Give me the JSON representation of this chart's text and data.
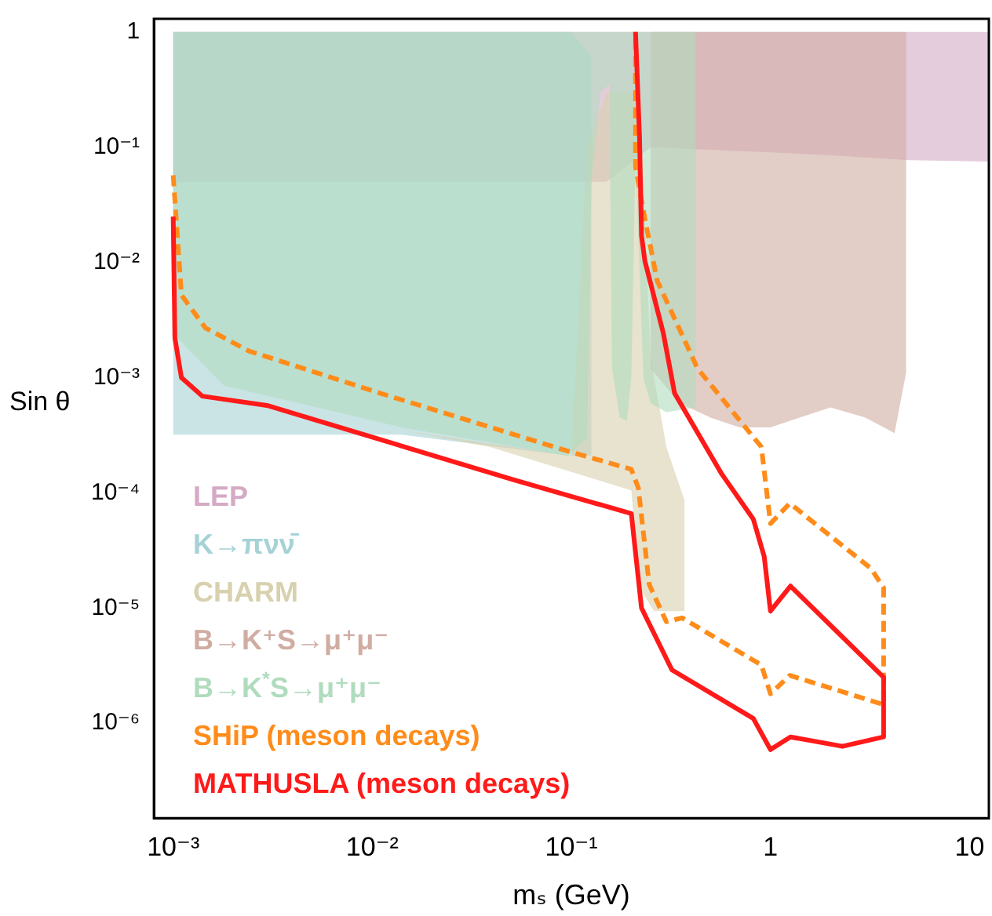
{
  "chart_data": {
    "type": "area",
    "xlabel": "mₛ (GeV)",
    "ylabel": "Sin θ",
    "log": "xy",
    "legend": "bottom left",
    "xlim": [
      0.0008,
      12.5
    ],
    "ylim": [
      1.5e-07,
      1.3
    ],
    "xticks": [
      {
        "value": 0.001,
        "label": "10⁻³"
      },
      {
        "value": 0.01,
        "label": "10⁻²"
      },
      {
        "value": 0.1,
        "label": "10⁻¹"
      },
      1,
      10
    ],
    "yticks": [
      {
        "value": 1e-06,
        "label": "10⁻⁶"
      },
      {
        "value": 1e-05,
        "label": "10⁻⁵"
      },
      {
        "value": 0.0001,
        "label": "10⁻⁴"
      },
      {
        "value": 0.001,
        "label": "10⁻³"
      },
      {
        "value": 0.01,
        "label": "10⁻²"
      },
      {
        "value": 0.1,
        "label": "10⁻¹"
      },
      1
    ],
    "series": [
      {
        "name": "LEP",
        "color": "#d4aac4",
        "x": [
          0.001,
          0.15,
          0.25,
          1,
          2,
          5,
          12.5,
          12.5,
          0.001
        ],
        "values": [
          0.05,
          0.05,
          0.1,
          0.09,
          0.085,
          0.077,
          0.075,
          1,
          1
        ]
      },
      {
        "name": "K→πνν̄",
        "color": "#a6d2d6",
        "x": [
          0.001,
          0.1,
          0.126,
          0.126,
          0.096,
          0.014,
          0.001
        ],
        "values": [
          1,
          1,
          0.6,
          0.00021,
          0.00021,
          0.00032,
          0.00032
        ]
      },
      {
        "name": "CHARM",
        "color": "#d7d1ae",
        "x": [
          0.014,
          0.039,
          0.2,
          0.22,
          0.26,
          0.37,
          0.37,
          0.3,
          0.25,
          0.23,
          0.2,
          0.15,
          0.12,
          0.1
        ],
        "values": [
          0.00035,
          0.00025,
          0.000105,
          1.5e-05,
          9.4e-06,
          9.4e-06,
          8.6e-05,
          0.00025,
          0.0015,
          0.05,
          0.3,
          0.3,
          0.1,
          0.00021
        ]
      },
      {
        "name": "B→K⁺S→μ⁺μ⁻",
        "color": "#d0aca2",
        "x": [
          0.25,
          4.8,
          4.8,
          4.2,
          3,
          2,
          1,
          0.7,
          0.5,
          0.35,
          0.25
        ],
        "values": [
          1,
          1,
          0.0011,
          0.00033,
          0.00045,
          0.00055,
          0.00037,
          0.00037,
          0.00045,
          0.0006,
          0.0012
        ]
      },
      {
        "name": "B→K$^{*}$S→μ⁺μ⁻",
        "color": "#b0dcbe",
        "x": [
          0.001,
          0.42,
          0.42,
          0.3,
          0.25,
          0.23,
          0.21,
          0.2,
          0.19,
          0.175,
          0.16,
          0.155,
          0.14,
          0.126,
          0.12,
          0.096,
          0.014,
          0.0018,
          0.001
        ],
        "values": [
          1,
          1,
          0.00055,
          0.0005,
          0.0006,
          0.001,
          0.08,
          0.001,
          0.00042,
          0.00045,
          0.0012,
          0.35,
          0.3,
          0.05,
          0.0003,
          0.00021,
          0.00037,
          0.00085,
          0.0024
        ]
      },
      {
        "name": "SHiP (meson decays)",
        "type": "line",
        "line_style": "dashed",
        "color": "#ff8c1a",
        "x": [
          0.001,
          0.0011,
          0.00145,
          0.0024,
          0.011,
          0.096,
          0.2,
          0.217,
          0.246,
          0.3,
          0.36,
          0.9,
          1,
          1.25,
          3.7,
          3.7,
          3.2,
          1.25,
          1,
          0.9,
          0.43,
          0.27,
          0.234,
          0.21,
          0.21
        ],
        "values": [
          0.057,
          0.0052,
          0.0027,
          0.0017,
          0.00073,
          0.00023,
          0.00016,
          0.00011,
          1.6e-05,
          7.6e-06,
          8.2e-06,
          3.2e-06,
          1.8e-06,
          2.6e-06,
          1.45e-06,
          1.5e-05,
          2.2e-05,
          8.1e-05,
          5.4e-05,
          0.00025,
          0.0012,
          0.0069,
          0.024,
          0.067,
          1
        ]
      },
      {
        "name": "MATHUSLA (meson decays)",
        "type": "line",
        "color": "#ff1a1a",
        "x": [
          0.001,
          0.00102,
          0.0011,
          0.0014,
          0.003,
          0.051,
          0.2,
          0.225,
          0.32,
          0.82,
          1,
          1.26,
          2.3,
          3.7,
          3.7,
          1.26,
          1,
          0.93,
          0.82,
          0.57,
          0.33,
          0.29,
          0.234,
          0.225,
          0.22,
          0.21
        ],
        "values": [
          0.025,
          0.0022,
          0.001,
          0.00069,
          0.00057,
          0.00013,
          6.6e-05,
          1e-05,
          2.9e-06,
          1.1e-06,
          5.9e-07,
          7.6e-07,
          6.3e-07,
          7.6e-07,
          2.5e-06,
          1.55e-05,
          9.4e-06,
          2.8e-05,
          5.9e-05,
          0.000145,
          0.00073,
          0.0024,
          0.0103,
          0.017,
          0.12,
          1
        ]
      }
    ]
  }
}
